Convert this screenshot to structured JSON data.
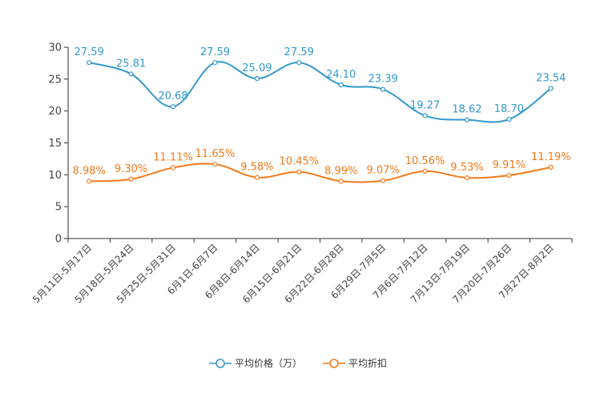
{
  "chart_data": {
    "type": "line",
    "title": "",
    "xlabel": "",
    "ylabel": "",
    "ylim": [
      0,
      30
    ],
    "yticks": [
      0,
      5,
      10,
      15,
      20,
      25,
      30
    ],
    "categories": [
      "5月11日-5月17日",
      "5月18日-5月24日",
      "5月25日-5月31日",
      "6月1日-6月7日",
      "6月8日-6月14日",
      "6月15日-6月21日",
      "6月22日-6月28日",
      "6月29日-7月5日",
      "7月6日-7月12日",
      "7月13日-7月19日",
      "7月20日-7月26日",
      "7月27日-8月2日"
    ],
    "series": [
      {
        "name": "平均价格（万）",
        "color": "#3398CC",
        "values": [
          27.59,
          25.81,
          20.68,
          27.59,
          25.09,
          27.59,
          24.1,
          23.39,
          19.27,
          18.62,
          18.7,
          23.54
        ],
        "labels": [
          "27.59",
          "25.81",
          "20.68",
          "27.59",
          "25.09",
          "27.59",
          "24.10",
          "23.39",
          "19.27",
          "18.62",
          "18.70",
          "23.54"
        ]
      },
      {
        "name": "平均折扣",
        "color": "#F27A1A",
        "values": [
          8.98,
          9.3,
          11.11,
          11.65,
          9.58,
          10.45,
          8.99,
          9.07,
          10.56,
          9.53,
          9.91,
          11.19
        ],
        "labels": [
          "8.98%",
          "9.30%",
          "11.11%",
          "11.65%",
          "9.58%",
          "10.45%",
          "8.99%",
          "9.07%",
          "10.56%",
          "9.53%",
          "9.91%",
          "11.19%"
        ]
      }
    ],
    "legend_position": "bottom"
  }
}
